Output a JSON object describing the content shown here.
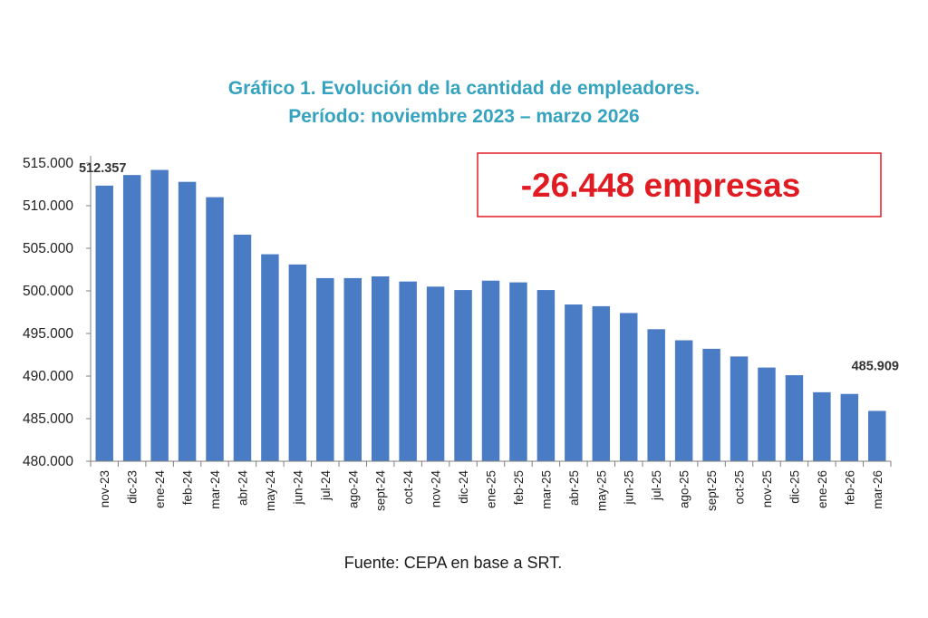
{
  "chart_data": {
    "type": "bar",
    "title": "Gráfico 1. Evolución de la cantidad de empleadores.",
    "subtitle": "Período: noviembre 2023 – marzo 2026",
    "xlabel": "",
    "ylabel": "",
    "ylim": [
      480000,
      515000
    ],
    "yticks": [
      "480.000",
      "485.000",
      "490.000",
      "495.000",
      "500.000",
      "505.000",
      "510.000",
      "515.000"
    ],
    "ytick_values": [
      480000,
      485000,
      490000,
      495000,
      500000,
      505000,
      510000,
      515000
    ],
    "grid": false,
    "legend": "none",
    "categories": [
      "nov-23",
      "dic-23",
      "ene-24",
      "feb-24",
      "mar-24",
      "abr-24",
      "may-24",
      "jun-24",
      "jul-24",
      "ago-24",
      "sept-24",
      "oct-24",
      "nov-24",
      "dic-24",
      "ene-25",
      "feb-25",
      "mar-25",
      "abr-25",
      "may-25",
      "jun-25",
      "jul-25",
      "ago-25",
      "sept-25",
      "oct-25",
      "nov-25",
      "dic-25",
      "ene-26",
      "feb-26",
      "mar-26"
    ],
    "values": [
      512357,
      513600,
      514200,
      512800,
      511000,
      506600,
      504300,
      503100,
      501500,
      501500,
      501700,
      501100,
      500500,
      500100,
      501200,
      501000,
      500100,
      498400,
      498200,
      497400,
      495500,
      494200,
      493200,
      492300,
      491000,
      490100,
      488100,
      487900,
      485909
    ],
    "data_labels": [
      {
        "category": "nov-23",
        "text": "512.357"
      },
      {
        "category": "mar-26",
        "text": "485.909"
      }
    ],
    "annotation": "-26.448 empresas",
    "source": "Fuente: CEPA en base a SRT.",
    "colors": {
      "bar": "#4a7cc6",
      "title": "#35a3bf",
      "annotation": "#e11b22"
    }
  }
}
